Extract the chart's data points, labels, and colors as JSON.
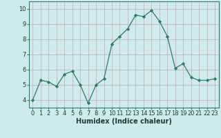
{
  "x": [
    0,
    1,
    2,
    3,
    4,
    5,
    6,
    7,
    8,
    9,
    10,
    11,
    12,
    13,
    14,
    15,
    16,
    17,
    18,
    19,
    20,
    21,
    22,
    23
  ],
  "y": [
    4.0,
    5.3,
    5.2,
    4.9,
    5.7,
    5.9,
    5.0,
    3.8,
    5.0,
    5.4,
    7.7,
    8.2,
    8.7,
    9.6,
    9.5,
    9.9,
    9.2,
    8.2,
    6.1,
    6.4,
    5.5,
    5.3,
    5.3,
    5.4
  ],
  "line_color": "#2d7a6e",
  "marker": "D",
  "marker_size": 2.2,
  "bg_color": "#ceeaea",
  "grid_color": "#b8d8d8",
  "xlabel": "Humidex (Indice chaleur)",
  "xlabel_fontsize": 7,
  "tick_fontsize": 6,
  "ylim": [
    3.5,
    10.5
  ],
  "xlim": [
    -0.5,
    23.5
  ],
  "yticks": [
    4,
    5,
    6,
    7,
    8,
    9,
    10
  ],
  "xticks": [
    0,
    1,
    2,
    3,
    4,
    5,
    6,
    7,
    8,
    9,
    10,
    11,
    12,
    13,
    14,
    15,
    16,
    17,
    18,
    19,
    20,
    21,
    22,
    23
  ]
}
